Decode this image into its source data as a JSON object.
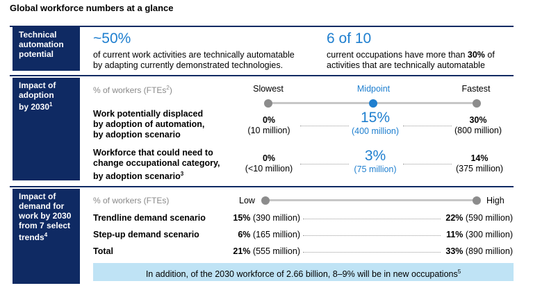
{
  "title": "Global workforce numbers at a glance",
  "section1": {
    "label": [
      "Technical",
      "automation",
      "potential"
    ],
    "stat1": {
      "value": "~50%",
      "line1": "of current work activities are technically automatable",
      "line2": "by adapting currently demonstrated technologies."
    },
    "stat2": {
      "value": "6 of 10",
      "line1_pre": "current occupations have more than ",
      "line1_bold": "30%",
      "line1_post": " of",
      "line2": "activities that are technically automatable"
    }
  },
  "section2": {
    "label": [
      "Impact of",
      "adoption",
      "by 2030"
    ],
    "label_sup": "1",
    "axis_label": "% of workers (FTEs",
    "axis_sup": "2",
    "axis_label_end": ")",
    "scale": {
      "left": "Slowest",
      "mid": "Midpoint",
      "right": "Fastest"
    },
    "rows": [
      {
        "label": [
          "Work potentially displaced",
          "by adoption of automation,",
          "by adoption scenario"
        ],
        "label_sup": "",
        "slow_pct": "0%",
        "slow_abs": "(10 million)",
        "mid_pct": "15%",
        "mid_abs": "(400 million)",
        "fast_pct": "30%",
        "fast_abs": "(800 million)"
      },
      {
        "label": [
          "Workforce that could need to",
          "change occupational category,",
          "by adoption scenario"
        ],
        "label_sup": "3",
        "slow_pct": "0%",
        "slow_abs": "(<10 million)",
        "mid_pct": "3%",
        "mid_abs": "(75 million)",
        "fast_pct": "14%",
        "fast_abs": "(375 million)"
      }
    ]
  },
  "section3": {
    "label": [
      "Impact of",
      "demand for",
      "work by 2030",
      "from 7 select",
      "trends"
    ],
    "label_sup": "4",
    "axis_label": "% of workers (FTEs)",
    "scale": {
      "left": "Low",
      "right": "High"
    },
    "rows": [
      {
        "label": "Trendline demand scenario",
        "low_pct": "15%",
        "low_abs": "(390 million)",
        "high_pct": "22%",
        "high_abs": "(590 million)"
      },
      {
        "label": "Step-up demand scenario",
        "low_pct": "6%",
        "low_abs": "(165 million)",
        "high_pct": "11%",
        "high_abs": "(300 million)"
      },
      {
        "label": "Total",
        "low_pct": "21%",
        "low_abs": "(555 million)",
        "high_pct": "33%",
        "high_abs": "(890 million)"
      }
    ],
    "banner": "In addition, of the 2030 workforce of 2.66 billion, 8–9% will be in new occupations",
    "banner_sup": "5"
  }
}
